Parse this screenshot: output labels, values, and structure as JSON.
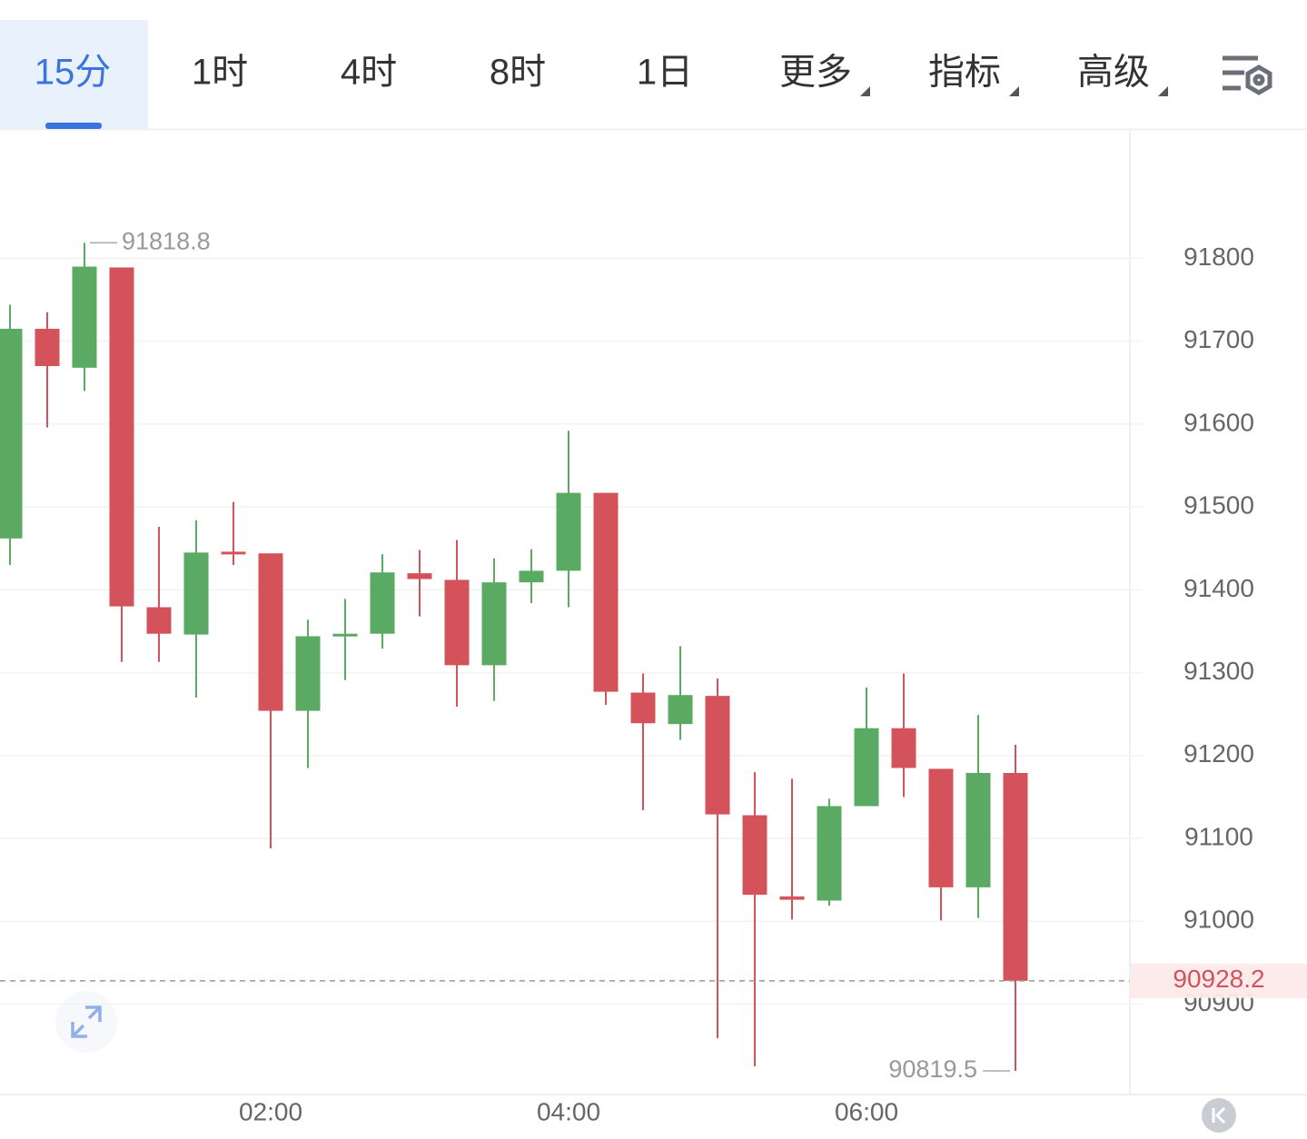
{
  "tabs": [
    "15分",
    "1时",
    "4时",
    "8时",
    "1日",
    "更多",
    "指标",
    "高级"
  ],
  "active_tab": 0,
  "chart_data": {
    "type": "candlestick",
    "categories": [
      null,
      null,
      null,
      null,
      null,
      null,
      null,
      "02:00",
      null,
      null,
      null,
      null,
      null,
      null,
      null,
      "04:00",
      null,
      null,
      null,
      null,
      null,
      null,
      null,
      "06:00",
      null,
      null,
      null,
      null
    ],
    "open": [
      91462,
      91715,
      91668,
      91789,
      91379,
      91346,
      91446,
      91444,
      91254,
      91345,
      91347,
      91420,
      91412,
      91309,
      91409,
      91423,
      91517,
      91276,
      91238,
      91272,
      91128,
      91030,
      91025,
      91139,
      91233,
      91184,
      91041,
      91179
    ],
    "high": [
      91744,
      91735,
      91818.8,
      91789,
      91476,
      91484,
      91506,
      91444,
      91364,
      91389,
      91443,
      91448,
      91460,
      91438,
      91449,
      91592,
      91517,
      91299,
      91332,
      91293,
      91180,
      91172,
      91148,
      91282,
      91299,
      91184,
      91249,
      91213
    ],
    "low": [
      91430,
      91596,
      91640,
      91313,
      91313,
      91270,
      91430,
      91088,
      91185,
      91291,
      91329,
      91368,
      91259,
      91266,
      91384,
      91379,
      91261,
      91134,
      91219,
      90859,
      90825,
      91002,
      91019,
      91139,
      91150,
      91001,
      91004,
      90819.5
    ],
    "close": [
      91715,
      91670,
      91790,
      91380,
      91347,
      91445,
      91444,
      91254,
      91344,
      91347,
      91421,
      91413,
      91309,
      91409,
      91423,
      91517,
      91277,
      91239,
      91273,
      91129,
      91032,
      91026,
      91139,
      91233,
      91185,
      91041,
      91179,
      90928.2
    ],
    "up_color": "#5aaa64",
    "down_color": "#d4535a",
    "ylim": [
      90791,
      91955
    ],
    "yticks": [
      90900,
      91000,
      91100,
      91200,
      91300,
      91400,
      91500,
      91600,
      91700,
      91800
    ],
    "grid": true
  }
}
